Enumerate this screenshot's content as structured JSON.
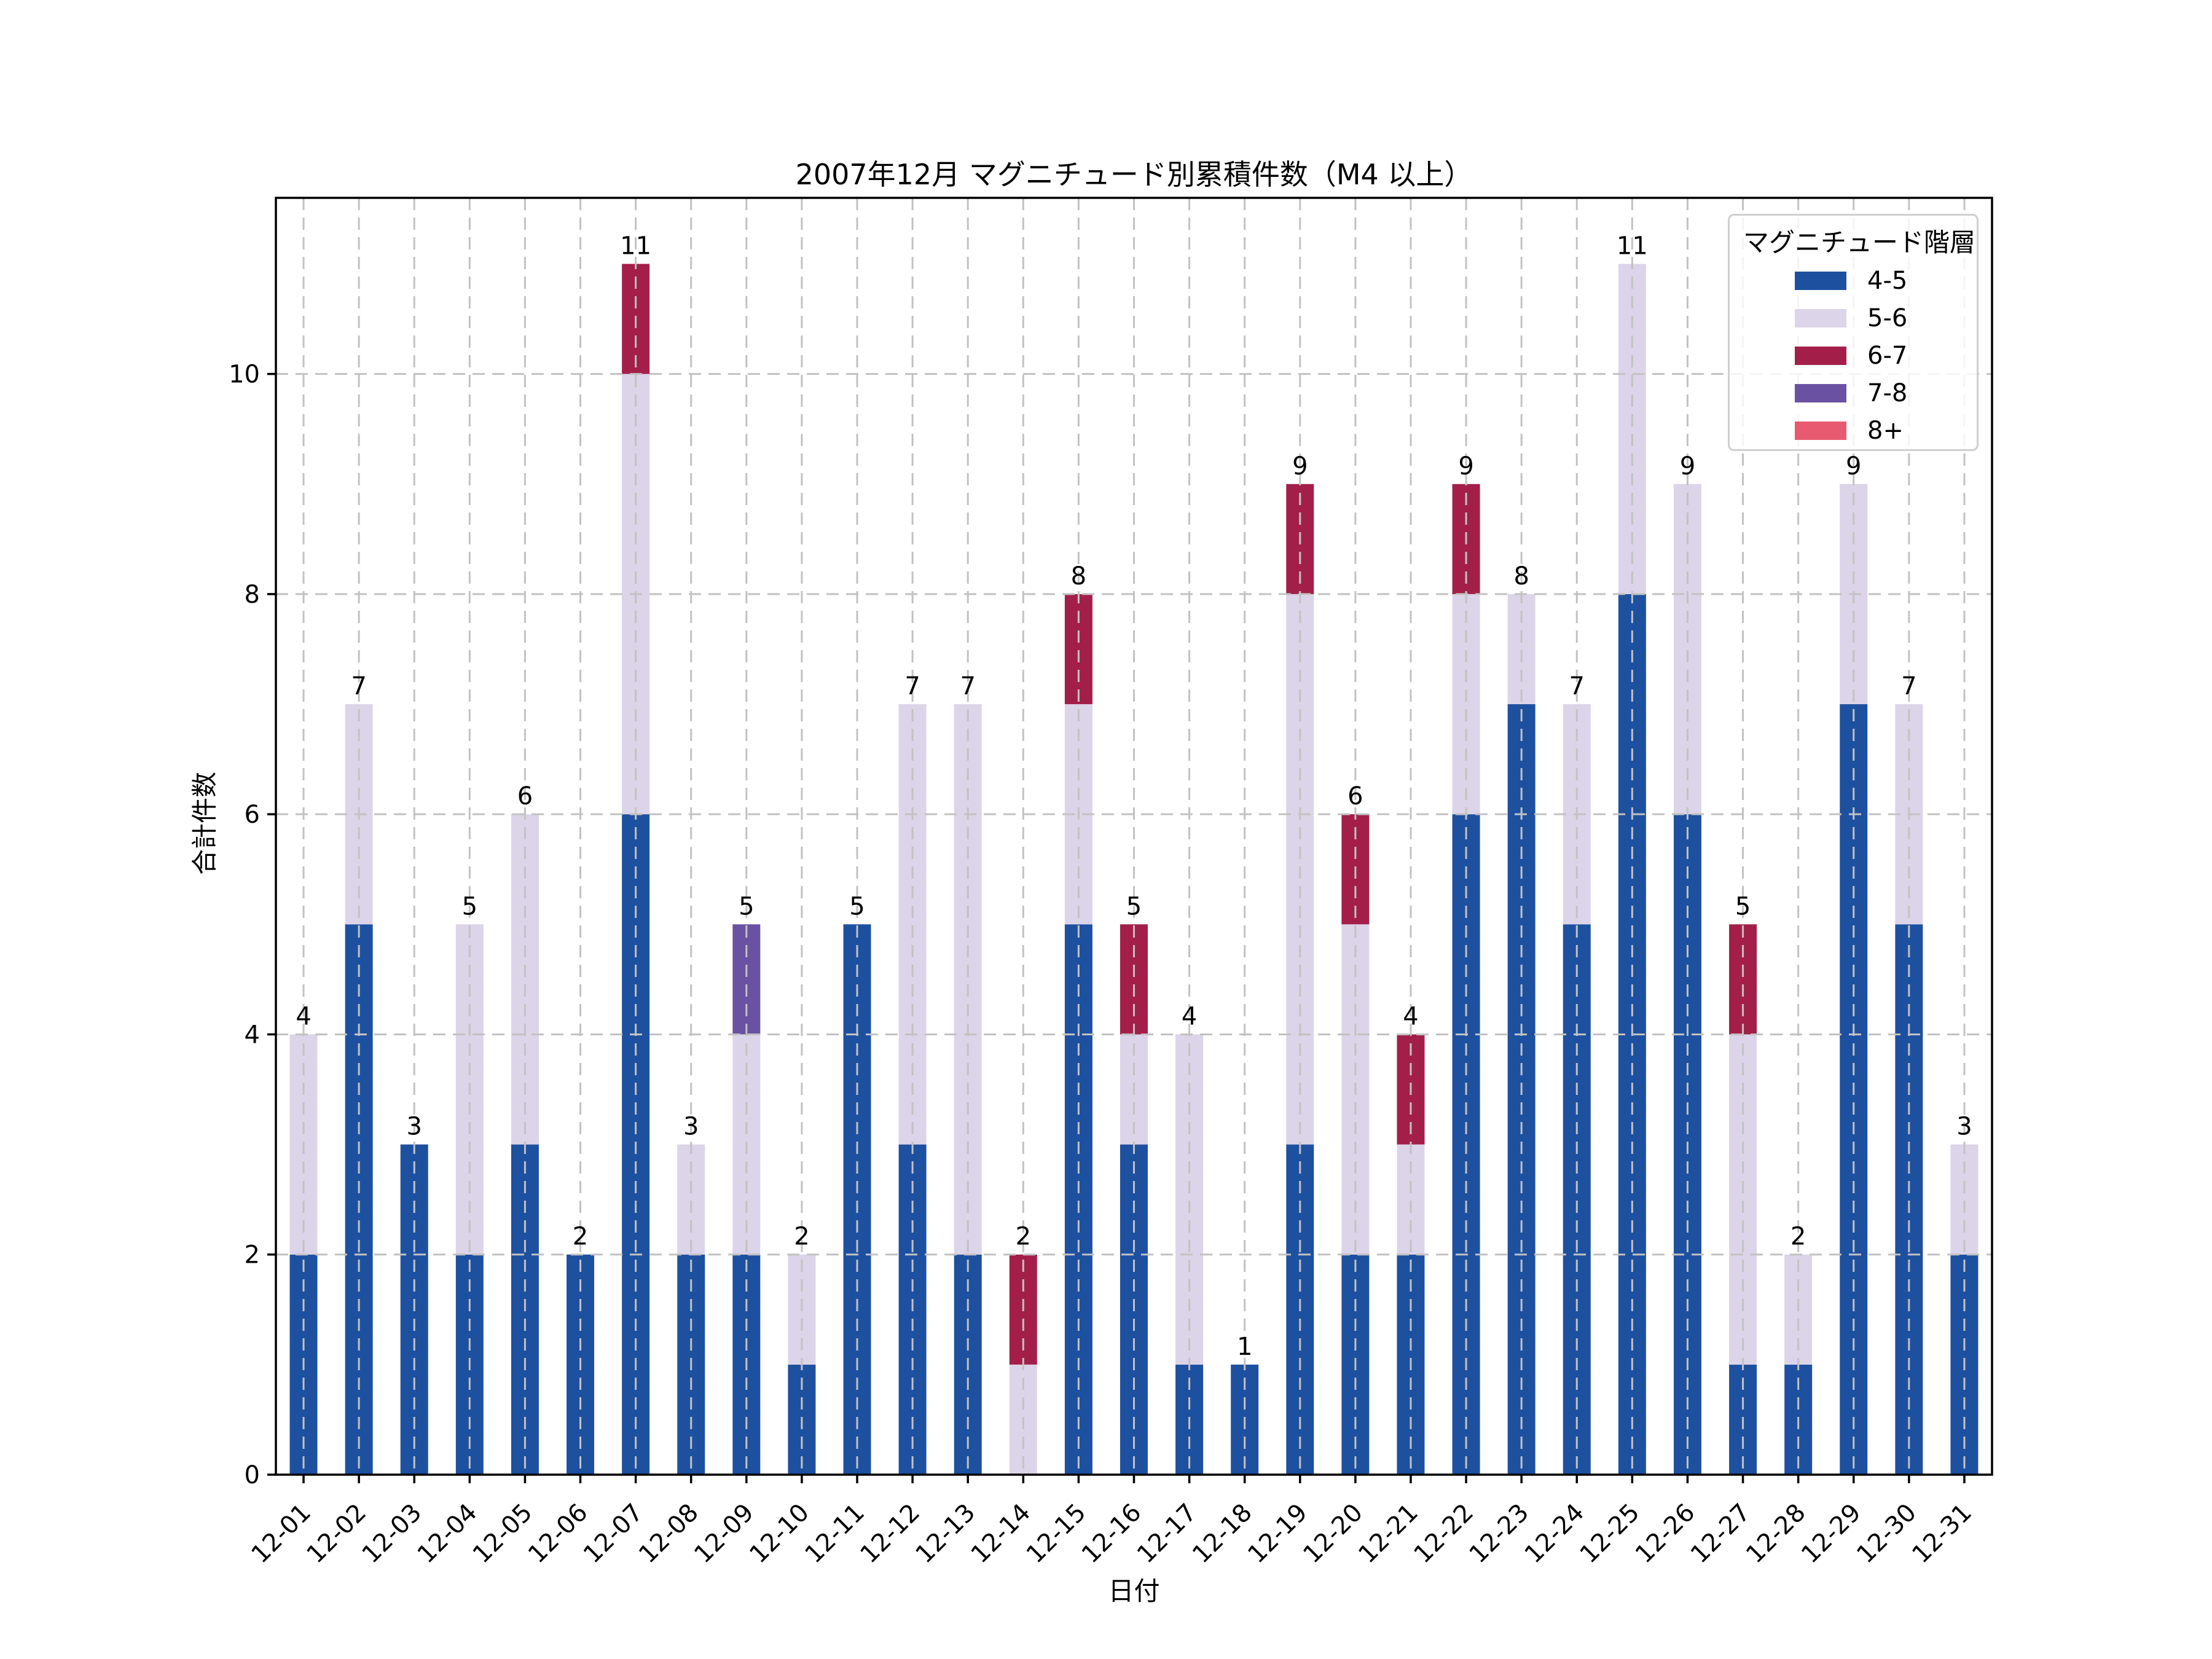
{
  "page": {
    "background": "#ffffff"
  },
  "colors": {
    "grid": "#c2c2c2",
    "axis": "#000000",
    "text": "#000000",
    "legend_border": "#cfcfcf"
  },
  "chart_data": {
    "type": "bar",
    "stacked": true,
    "title": "2007年12月 マグニチュード別累積件数（M4 以上）",
    "xlabel": "日付",
    "ylabel": "合計件数",
    "grid": true,
    "legend": {
      "title": "マグニチュード階層",
      "position": "upper right"
    },
    "yticks": [
      0,
      2,
      4,
      6,
      8,
      10
    ],
    "ylim": [
      0,
      11.6
    ],
    "categories": [
      "12-01",
      "12-02",
      "12-03",
      "12-04",
      "12-05",
      "12-06",
      "12-07",
      "12-08",
      "12-09",
      "12-10",
      "12-11",
      "12-12",
      "12-13",
      "12-14",
      "12-15",
      "12-16",
      "12-17",
      "12-18",
      "12-19",
      "12-20",
      "12-21",
      "12-22",
      "12-23",
      "12-24",
      "12-25",
      "12-26",
      "12-27",
      "12-28",
      "12-29",
      "12-30",
      "12-31"
    ],
    "series": [
      {
        "name": "4-5",
        "color": "#1e50a0",
        "values": [
          2,
          5,
          3,
          2,
          3,
          2,
          6,
          2,
          2,
          1,
          5,
          3,
          2,
          0,
          5,
          3,
          1,
          1,
          3,
          2,
          2,
          6,
          7,
          5,
          8,
          6,
          1,
          1,
          7,
          5,
          2
        ]
      },
      {
        "name": "5-6",
        "color": "#dcd4e8",
        "values": [
          2,
          2,
          0,
          3,
          3,
          0,
          4,
          1,
          2,
          1,
          0,
          4,
          5,
          1,
          2,
          1,
          3,
          0,
          5,
          3,
          1,
          2,
          1,
          2,
          3,
          3,
          3,
          1,
          2,
          2,
          1
        ]
      },
      {
        "name": "6-7",
        "color": "#a31f4a",
        "values": [
          0,
          0,
          0,
          0,
          0,
          0,
          1,
          0,
          0,
          0,
          0,
          0,
          0,
          1,
          1,
          1,
          0,
          0,
          1,
          1,
          1,
          1,
          0,
          0,
          0,
          0,
          1,
          0,
          0,
          0,
          0
        ]
      },
      {
        "name": "7-8",
        "color": "#6a51a1",
        "values": [
          0,
          0,
          0,
          0,
          0,
          0,
          0,
          0,
          1,
          0,
          0,
          0,
          0,
          0,
          0,
          0,
          0,
          0,
          0,
          0,
          0,
          0,
          0,
          0,
          0,
          0,
          0,
          0,
          0,
          0,
          0
        ]
      },
      {
        "name": "8+",
        "color": "#e75a6f",
        "values": [
          0,
          0,
          0,
          0,
          0,
          0,
          0,
          0,
          0,
          0,
          0,
          0,
          0,
          0,
          0,
          0,
          0,
          0,
          0,
          0,
          0,
          0,
          0,
          0,
          0,
          0,
          0,
          0,
          0,
          0,
          0
        ]
      }
    ],
    "totals": [
      4,
      7,
      3,
      5,
      6,
      2,
      11,
      3,
      5,
      2,
      5,
      7,
      7,
      2,
      8,
      5,
      4,
      1,
      9,
      6,
      4,
      9,
      8,
      7,
      11,
      9,
      5,
      2,
      9,
      7,
      3
    ]
  }
}
